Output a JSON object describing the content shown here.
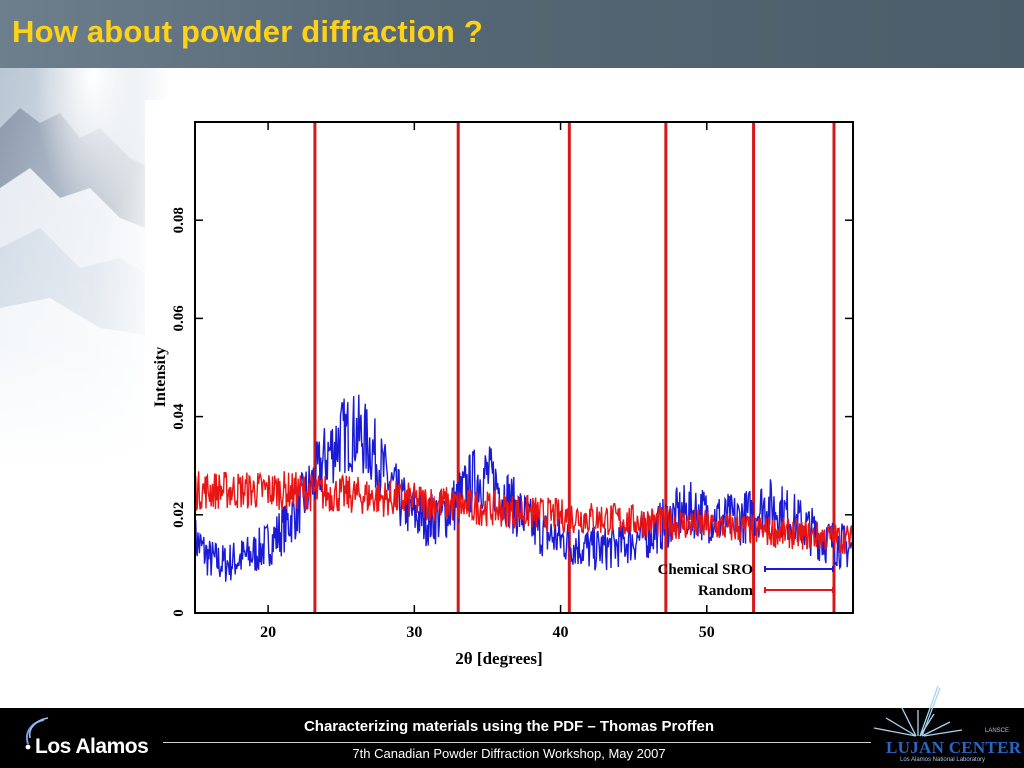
{
  "slide": {
    "title": "How about powder diffraction ?"
  },
  "footer": {
    "title": "Characterizing materials using the PDF – Thomas Proffen",
    "subtitle": "7th Canadian Powder Diffraction Workshop, May 2007"
  },
  "logos": {
    "left": "Los Alamos",
    "right": "LUJAN CENTER",
    "right_sub": "Los Alamos National Laboratory",
    "right_top": "LANSCE"
  },
  "colors": {
    "title_text": "#ffd21a",
    "title_bar": "#566875",
    "series_sro": "#1b1bd6",
    "series_random": "#e81515",
    "peak_lines": "#d81818"
  },
  "chart_data": {
    "type": "line",
    "title": "",
    "xlabel": "2θ [degrees]",
    "ylabel": "Intensity",
    "xlim": [
      15,
      60
    ],
    "ylim": [
      0,
      0.1
    ],
    "xticks": [
      20,
      30,
      40,
      50
    ],
    "xtick_labels": [
      "20",
      "30",
      "40",
      "50"
    ],
    "yticks": [
      0,
      0.02,
      0.04,
      0.06,
      0.08
    ],
    "ytick_labels": [
      "0",
      "0.02",
      "0.04",
      "0.06",
      "0.08"
    ],
    "legend_position": "bottom-right",
    "vertical_lines": [
      23.2,
      33.0,
      40.6,
      47.2,
      53.2,
      58.7
    ],
    "series": [
      {
        "name": "Chemical SRO",
        "x": [
          15,
          16,
          17,
          18,
          19,
          20,
          21,
          22,
          23,
          24,
          25,
          26,
          27,
          28,
          29,
          30,
          31,
          32,
          33,
          34,
          35,
          36,
          37,
          38,
          39,
          40,
          41,
          42,
          43,
          44,
          45,
          46,
          47,
          48,
          49,
          50,
          51,
          52,
          53,
          54,
          55,
          56,
          57,
          58,
          59,
          60
        ],
        "values": [
          0.015,
          0.011,
          0.01,
          0.011,
          0.012,
          0.014,
          0.017,
          0.021,
          0.026,
          0.032,
          0.036,
          0.037,
          0.034,
          0.028,
          0.023,
          0.02,
          0.019,
          0.02,
          0.023,
          0.027,
          0.028,
          0.025,
          0.021,
          0.018,
          0.016,
          0.015,
          0.014,
          0.013,
          0.013,
          0.014,
          0.015,
          0.016,
          0.018,
          0.02,
          0.021,
          0.02,
          0.019,
          0.019,
          0.02,
          0.022,
          0.021,
          0.019,
          0.017,
          0.015,
          0.014,
          0.013
        ]
      },
      {
        "name": "Random",
        "x": [
          15,
          16,
          17,
          18,
          19,
          20,
          21,
          22,
          23,
          24,
          25,
          26,
          27,
          28,
          29,
          30,
          31,
          32,
          33,
          34,
          35,
          36,
          37,
          38,
          39,
          40,
          41,
          42,
          43,
          44,
          45,
          46,
          47,
          48,
          49,
          50,
          51,
          52,
          53,
          54,
          55,
          56,
          57,
          58,
          59,
          60
        ],
        "values": [
          0.025,
          0.025,
          0.025,
          0.025,
          0.025,
          0.025,
          0.025,
          0.0248,
          0.0246,
          0.0244,
          0.0242,
          0.024,
          0.0237,
          0.0234,
          0.0231,
          0.0228,
          0.0225,
          0.0222,
          0.0219,
          0.0216,
          0.0213,
          0.021,
          0.0207,
          0.0204,
          0.0201,
          0.0198,
          0.0196,
          0.0194,
          0.0192,
          0.019,
          0.0188,
          0.0186,
          0.0184,
          0.0182,
          0.018,
          0.0178,
          0.0176,
          0.0173,
          0.017,
          0.0167,
          0.0164,
          0.0161,
          0.0158,
          0.0155,
          0.0152,
          0.015
        ]
      }
    ]
  }
}
